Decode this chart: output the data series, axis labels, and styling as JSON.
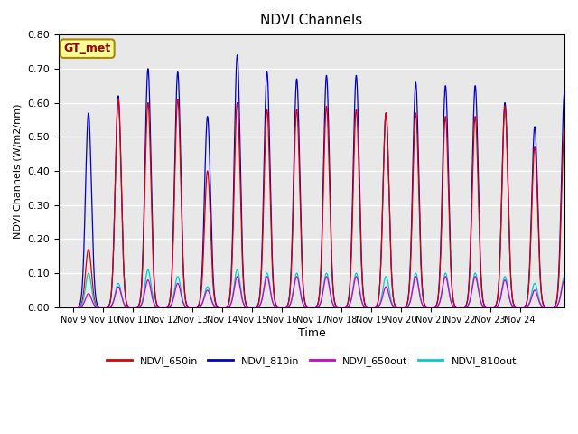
{
  "title": "NDVI Channels",
  "ylabel": "NDVI Channels (W/m2/nm)",
  "xlabel": "Time",
  "annotation": "GT_met",
  "ylim": [
    0.0,
    0.8
  ],
  "yticks": [
    0.0,
    0.1,
    0.2,
    0.3,
    0.4,
    0.5,
    0.6,
    0.7,
    0.8
  ],
  "x_tick_labels": [
    "Nov 9",
    "Nov 10",
    "Nov 11",
    "Nov 12",
    "Nov 13",
    "Nov 14",
    "Nov 15",
    "Nov 16",
    "Nov 17",
    "Nov 18",
    "Nov 19",
    "Nov 20",
    "Nov 21",
    "Nov 22",
    "Nov 23",
    "Nov 24"
  ],
  "colors": {
    "NDVI_650in": "#dd0000",
    "NDVI_810in": "#0000cc",
    "NDVI_650out": "#cc00cc",
    "NDVI_810out": "#00cccc"
  },
  "peaks_650in": [
    0.17,
    0.61,
    0.6,
    0.61,
    0.4,
    0.6,
    0.58,
    0.58,
    0.59,
    0.58,
    0.57,
    0.57,
    0.56,
    0.56,
    0.59,
    0.47,
    0.52
  ],
  "peaks_810in": [
    0.57,
    0.62,
    0.7,
    0.69,
    0.56,
    0.74,
    0.69,
    0.67,
    0.68,
    0.68,
    0.57,
    0.66,
    0.65,
    0.65,
    0.6,
    0.53,
    0.63
  ],
  "peaks_650out": [
    0.04,
    0.06,
    0.08,
    0.07,
    0.05,
    0.09,
    0.09,
    0.09,
    0.09,
    0.09,
    0.06,
    0.09,
    0.09,
    0.09,
    0.08,
    0.05,
    0.08
  ],
  "peaks_810out": [
    0.1,
    0.07,
    0.11,
    0.09,
    0.06,
    0.11,
    0.1,
    0.1,
    0.1,
    0.1,
    0.09,
    0.1,
    0.1,
    0.1,
    0.09,
    0.07,
    0.09
  ],
  "background_color": "#e8e8e8",
  "grid_color": "#ffffff",
  "annotation_bg": "#ffff99",
  "annotation_border": "#aa8800",
  "legend_dash_colors": [
    "#dd0000",
    "#0000cc",
    "#cc00cc",
    "#00cccc"
  ],
  "legend_labels": [
    "NDVI_650in",
    "NDVI_810in",
    "NDVI_650out",
    "NDVI_810out"
  ]
}
